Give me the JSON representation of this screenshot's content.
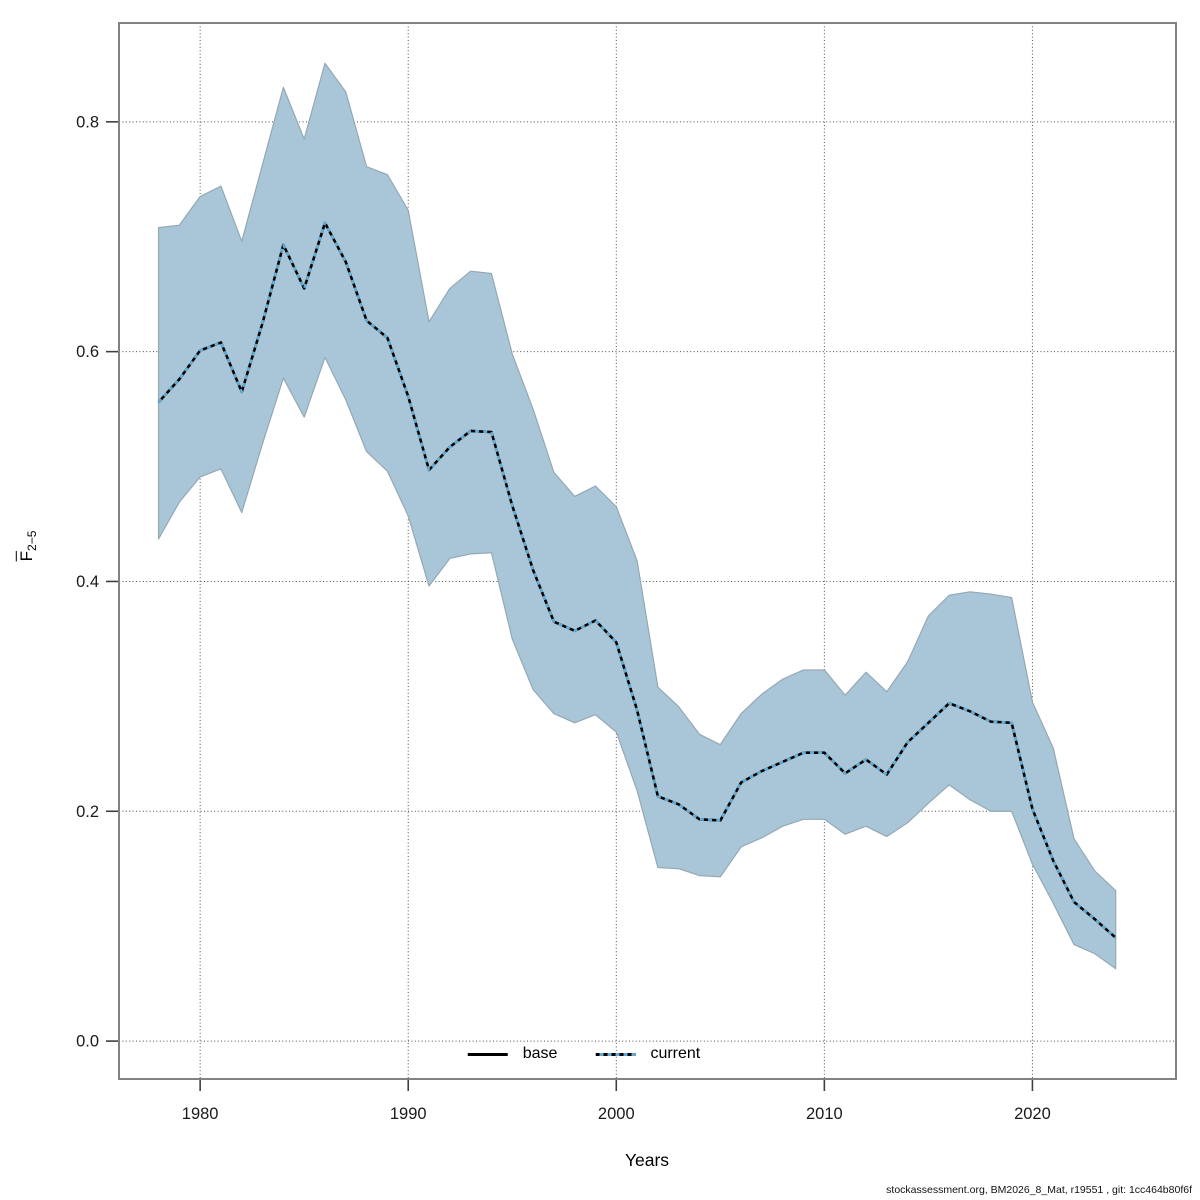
{
  "figure": {
    "caption": "stockassessment.org, BM2026_8_Mat, r19551 , git: 1cc464b80f6f"
  },
  "colors": {
    "frame": "#828282",
    "tick": "#3f3f3f",
    "grid": "#4d4d4d",
    "text": "#1a1a1a",
    "band_fill": "#a9c6d8",
    "band_edge": "#94a8b4",
    "base_line": "#000000",
    "current_line": "#63acd5"
  },
  "chart_data": {
    "type": "area",
    "title": "",
    "xlabel": "Years",
    "ylabel": "F",
    "ylabel_sub": "2−5",
    "grid": "dotted",
    "legend_position": "bottom-center",
    "xlim": [
      1976.1,
      2026.9
    ],
    "ylim": [
      -0.033,
      0.886
    ],
    "xticks": [
      1980,
      1990,
      2000,
      2010,
      2020
    ],
    "yticks": [
      0.0,
      0.2,
      0.4,
      0.6,
      0.8
    ],
    "ytick_labels": [
      "0.0",
      "0.2",
      "0.4",
      "0.6",
      "0.8"
    ],
    "x": [
      1978,
      1979,
      1980,
      1981,
      1982,
      1983,
      1984,
      1985,
      1986,
      1987,
      1988,
      1989,
      1990,
      1991,
      1992,
      1993,
      1994,
      1995,
      1996,
      1997,
      1998,
      1999,
      2000,
      2001,
      2002,
      2003,
      2004,
      2005,
      2006,
      2007,
      2008,
      2009,
      2010,
      2011,
      2012,
      2013,
      2014,
      2015,
      2016,
      2017,
      2018,
      2019,
      2020,
      2021,
      2022,
      2023,
      2024
    ],
    "legend": [
      {
        "label": "base",
        "style": "solid"
      },
      {
        "label": "current",
        "style": "dotted"
      }
    ],
    "series": [
      {
        "name": "base",
        "values": [
          0.556,
          0.576,
          0.601,
          0.608,
          0.565,
          0.625,
          0.693,
          0.655,
          0.712,
          0.678,
          0.627,
          0.612,
          0.561,
          0.497,
          0.517,
          0.531,
          0.53,
          0.466,
          0.41,
          0.365,
          0.357,
          0.366,
          0.347,
          0.288,
          0.213,
          0.206,
          0.193,
          0.192,
          0.225,
          0.235,
          0.243,
          0.251,
          0.251,
          0.233,
          0.245,
          0.232,
          0.26,
          0.277,
          0.294,
          0.287,
          0.278,
          0.277,
          0.202,
          0.157,
          0.121,
          0.106,
          0.09
        ]
      },
      {
        "name": "current",
        "values": [
          0.556,
          0.576,
          0.601,
          0.608,
          0.565,
          0.625,
          0.693,
          0.655,
          0.712,
          0.678,
          0.627,
          0.612,
          0.561,
          0.497,
          0.517,
          0.531,
          0.53,
          0.466,
          0.41,
          0.365,
          0.357,
          0.366,
          0.347,
          0.288,
          0.213,
          0.206,
          0.193,
          0.192,
          0.225,
          0.235,
          0.243,
          0.251,
          0.251,
          0.233,
          0.245,
          0.232,
          0.26,
          0.277,
          0.294,
          0.287,
          0.278,
          0.277,
          0.202,
          0.157,
          0.121,
          0.106,
          0.09
        ]
      }
    ],
    "band": {
      "name": "confidence-band",
      "lower": [
        0.437,
        0.469,
        0.491,
        0.498,
        0.46,
        0.52,
        0.577,
        0.543,
        0.595,
        0.558,
        0.513,
        0.496,
        0.457,
        0.396,
        0.42,
        0.424,
        0.425,
        0.35,
        0.306,
        0.285,
        0.277,
        0.284,
        0.269,
        0.218,
        0.151,
        0.15,
        0.144,
        0.143,
        0.169,
        0.177,
        0.187,
        0.193,
        0.193,
        0.18,
        0.187,
        0.178,
        0.19,
        0.207,
        0.223,
        0.21,
        0.2,
        0.2,
        0.154,
        0.12,
        0.084,
        0.076,
        0.063
      ],
      "upper": [
        0.708,
        0.71,
        0.735,
        0.744,
        0.696,
        0.763,
        0.83,
        0.785,
        0.851,
        0.826,
        0.761,
        0.754,
        0.723,
        0.626,
        0.655,
        0.67,
        0.668,
        0.598,
        0.55,
        0.495,
        0.474,
        0.483,
        0.465,
        0.418,
        0.308,
        0.291,
        0.267,
        0.258,
        0.285,
        0.302,
        0.315,
        0.323,
        0.323,
        0.301,
        0.321,
        0.304,
        0.33,
        0.37,
        0.388,
        0.391,
        0.389,
        0.386,
        0.295,
        0.255,
        0.176,
        0.148,
        0.131
      ]
    }
  }
}
